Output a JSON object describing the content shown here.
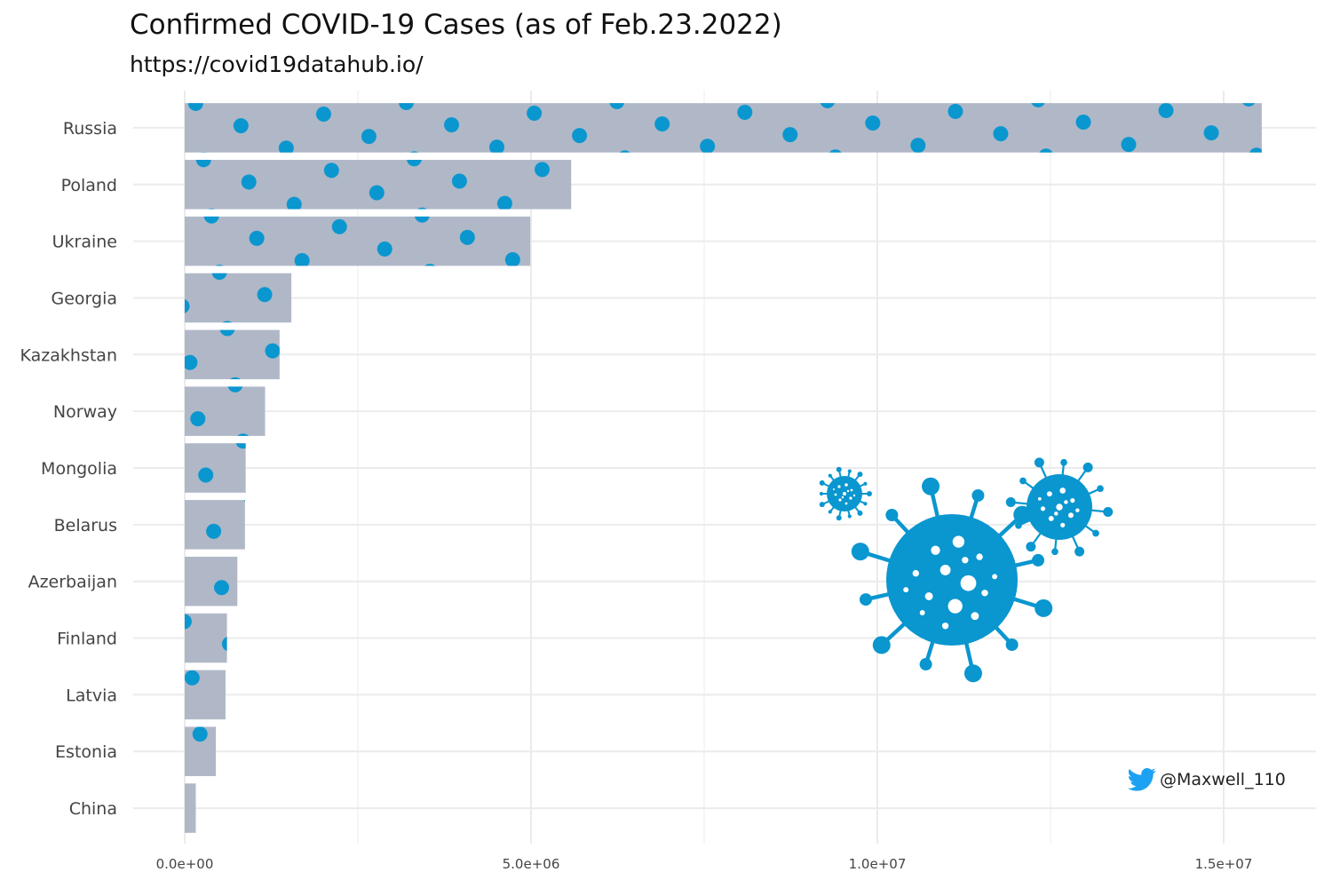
{
  "chart_data": {
    "type": "bar",
    "orientation": "horizontal",
    "title": "Confirmed COVID-19 Cases (as of Feb.23.2022)",
    "subtitle": "https://covid19datahub.io/",
    "xlabel": "",
    "ylabel": "",
    "categories": [
      "Russia",
      "Poland",
      "Ukraine",
      "Georgia",
      "Kazakhstan",
      "Norway",
      "Mongolia",
      "Belarus",
      "Azerbaijan",
      "Finland",
      "Latvia",
      "Estonia",
      "China"
    ],
    "values": [
      15550000,
      5580000,
      4990000,
      1540000,
      1370000,
      1160000,
      880000,
      870000,
      760000,
      610000,
      590000,
      450000,
      160000
    ],
    "xlim": [
      0,
      16300000
    ],
    "x_ticks": [
      0,
      5000000,
      10000000,
      15000000
    ],
    "x_tick_labels": [
      "0.0e+00",
      "5.0e+06",
      "1.0e+07",
      "1.5e+07"
    ],
    "grid": true,
    "legend": "none",
    "colors": {
      "bar_fill": "#b0b8c8",
      "pattern": "#0a96cf",
      "grid": "#ebebeb",
      "twitter": "#1da1f2"
    },
    "bar_pattern": "dots"
  },
  "decorations": {
    "image": "virus-cluster-icon"
  },
  "credit": {
    "icon": "twitter-bird-icon",
    "text": "@Maxwell_110"
  }
}
